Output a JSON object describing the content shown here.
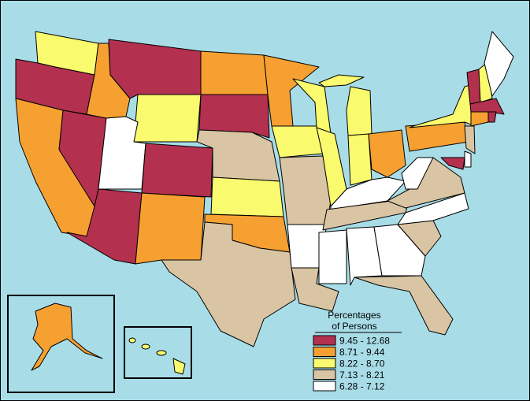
{
  "legend": {
    "title_lines": [
      "Percentages",
      "of Persons"
    ],
    "items": [
      {
        "label": "9.45 - 12.68",
        "color": "#b3304f"
      },
      {
        "label": "8.71 - 9.44",
        "color": "#f7a032"
      },
      {
        "label": "8.22 - 8.70",
        "color": "#fafa6e"
      },
      {
        "label": "7.13 - 8.21",
        "color": "#d9c5a3"
      },
      {
        "label": "6.28 - 7.12",
        "color": "#ffffff"
      }
    ]
  }
}
